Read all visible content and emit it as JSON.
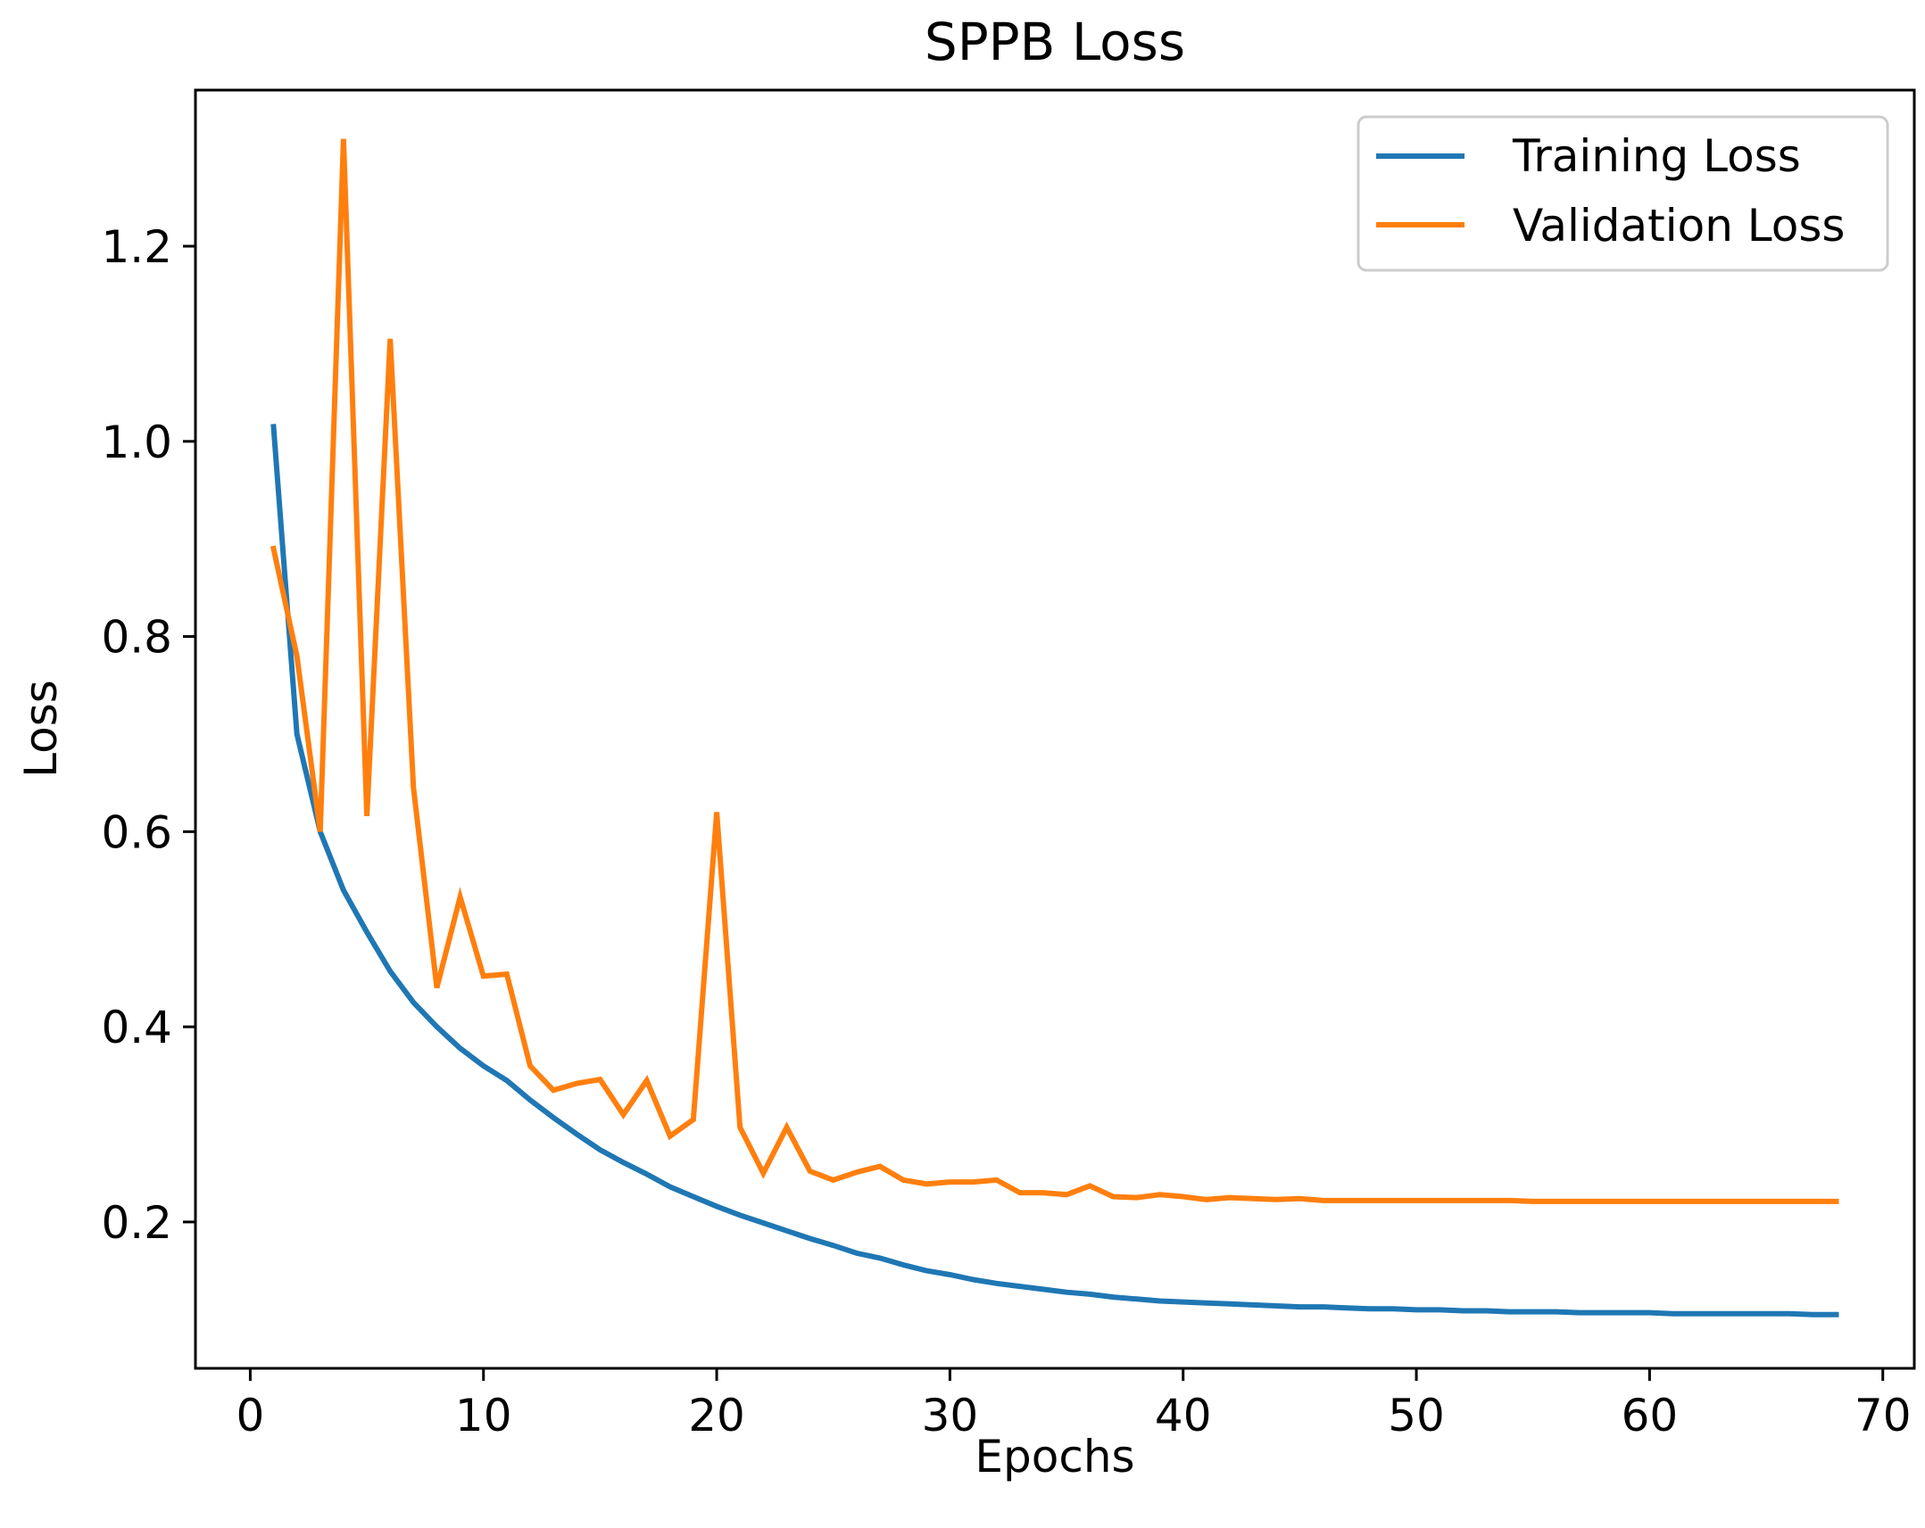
{
  "chart_data": {
    "type": "line",
    "title": "SPPB Loss",
    "xlabel": "Epochs",
    "ylabel": "Loss",
    "xlim": [
      -2.35,
      71.35
    ],
    "ylim": [
      0.05,
      1.36
    ],
    "xticks": [
      0,
      10,
      20,
      30,
      40,
      50,
      60,
      70
    ],
    "xtick_labels": [
      "0",
      "10",
      "20",
      "30",
      "40",
      "50",
      "60",
      "70"
    ],
    "yticks": [
      0.2,
      0.4,
      0.6,
      0.8,
      1.0,
      1.2
    ],
    "ytick_labels": [
      "0.2",
      "0.4",
      "0.6",
      "0.8",
      "1.0",
      "1.2"
    ],
    "grid": false,
    "legend_position": "top-right",
    "x": [
      1,
      2,
      3,
      4,
      5,
      6,
      7,
      8,
      9,
      10,
      11,
      12,
      13,
      14,
      15,
      16,
      17,
      18,
      19,
      20,
      21,
      22,
      23,
      24,
      25,
      26,
      27,
      28,
      29,
      30,
      31,
      32,
      33,
      34,
      35,
      36,
      37,
      38,
      39,
      40,
      41,
      42,
      43,
      44,
      45,
      46,
      47,
      48,
      49,
      50,
      51,
      52,
      53,
      54,
      55,
      56,
      57,
      58,
      59,
      60,
      61,
      62,
      63,
      64,
      65,
      66,
      67,
      68
    ],
    "series": [
      {
        "name": "Training Loss",
        "color": "#1f77b4",
        "values": [
          1.015,
          0.7,
          0.6,
          0.54,
          0.497,
          0.457,
          0.425,
          0.4,
          0.378,
          0.36,
          0.345,
          0.325,
          0.307,
          0.29,
          0.274,
          0.261,
          0.249,
          0.236,
          0.226,
          0.216,
          0.207,
          0.199,
          0.191,
          0.183,
          0.176,
          0.168,
          0.163,
          0.156,
          0.15,
          0.146,
          0.141,
          0.137,
          0.134,
          0.131,
          0.128,
          0.126,
          0.123,
          0.121,
          0.119,
          0.118,
          0.117,
          0.116,
          0.115,
          0.114,
          0.113,
          0.113,
          0.112,
          0.111,
          0.111,
          0.11,
          0.11,
          0.109,
          0.109,
          0.108,
          0.108,
          0.108,
          0.107,
          0.107,
          0.107,
          0.107,
          0.106,
          0.106,
          0.106,
          0.106,
          0.106,
          0.106,
          0.105,
          0.105
        ]
      },
      {
        "name": "Validation Loss",
        "color": "#ff7f0e",
        "values": [
          0.89,
          0.78,
          0.6,
          1.31,
          0.616,
          1.105,
          0.645,
          0.44,
          0.533,
          0.452,
          0.454,
          0.36,
          0.335,
          0.342,
          0.346,
          0.31,
          0.345,
          0.288,
          0.305,
          0.62,
          0.297,
          0.25,
          0.297,
          0.252,
          0.243,
          0.251,
          0.257,
          0.243,
          0.239,
          0.241,
          0.241,
          0.243,
          0.23,
          0.23,
          0.228,
          0.237,
          0.226,
          0.225,
          0.228,
          0.226,
          0.223,
          0.225,
          0.224,
          0.223,
          0.224,
          0.222,
          0.222,
          0.222,
          0.222,
          0.222,
          0.222,
          0.222,
          0.222,
          0.222,
          0.221,
          0.221,
          0.221,
          0.221,
          0.221,
          0.221,
          0.221,
          0.221,
          0.221,
          0.221,
          0.221,
          0.221,
          0.221,
          0.221
        ]
      }
    ]
  }
}
